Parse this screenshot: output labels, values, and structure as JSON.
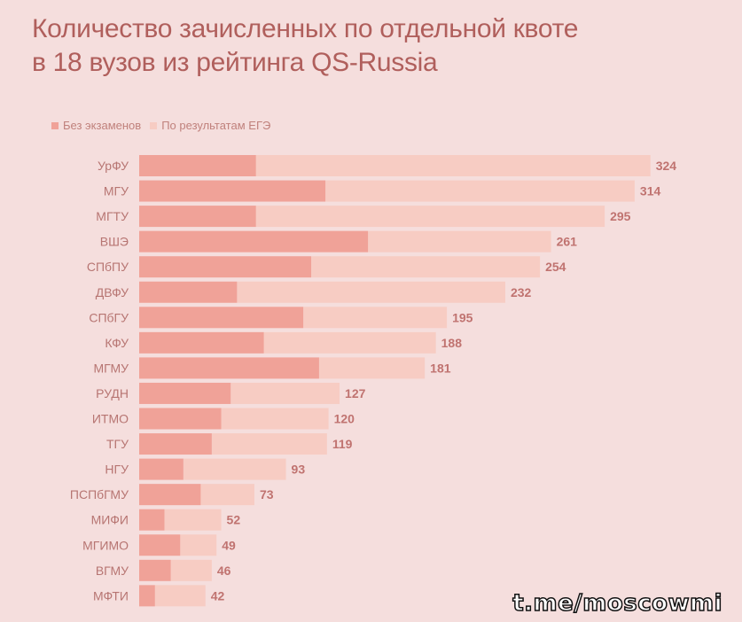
{
  "title": {
    "line1": "Количество зачисленных по отдельной квоте",
    "line2": "в 18 вузов из рейтинга QS-Russia"
  },
  "legend": {
    "series1": "Без экзаменов",
    "series2": "По результатам ЕГЭ"
  },
  "watermark": "t.me/moscowmi",
  "colors": {
    "background": "#f5dedd",
    "no_exam": "#f0a298",
    "ege": "#f7ccc3",
    "label": "#b77572",
    "value": "#c07370",
    "title": "#b05f5c"
  },
  "chart_data": {
    "type": "bar",
    "orientation": "horizontal",
    "stacked": true,
    "categories": [
      "УрФУ",
      "МГУ",
      "МГТУ",
      "ВШЭ",
      "СПбПУ",
      "ДВФУ",
      "СПбГУ",
      "КФУ",
      "МГМУ",
      "РУДН",
      "ИТМО",
      "ТГУ",
      "НГУ",
      "ПСПбГМУ",
      "МИФИ",
      "МГИМО",
      "ВГМУ",
      "МФТИ"
    ],
    "series": [
      {
        "name": "Без экзаменов",
        "values": [
          74,
          118,
          74,
          145,
          109,
          62,
          104,
          79,
          114,
          58,
          52,
          46,
          28,
          39,
          16,
          26,
          20,
          10
        ]
      },
      {
        "name": "По результатам ЕГЭ",
        "values": [
          250,
          196,
          221,
          116,
          145,
          170,
          91,
          109,
          67,
          69,
          68,
          73,
          65,
          34,
          36,
          23,
          26,
          32
        ]
      }
    ],
    "totals": [
      "324",
      "314",
      "295",
      "261",
      "254",
      "232",
      "195",
      "188",
      "181",
      "127",
      "120",
      "119",
      "93",
      "73",
      "52",
      "49",
      "46",
      "42"
    ],
    "xlim": [
      0,
      330
    ],
    "grid": false,
    "legend_position": "top-left"
  }
}
